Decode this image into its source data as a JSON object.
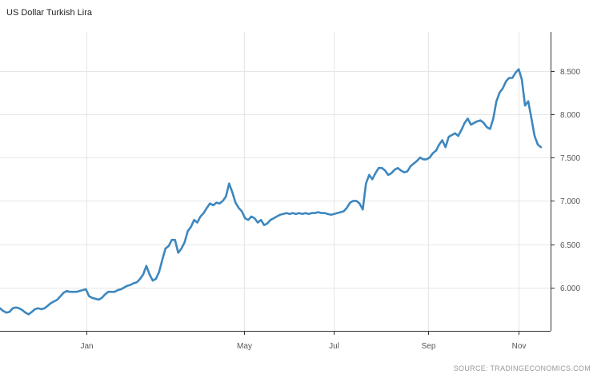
{
  "chart_data": {
    "type": "line",
    "title": "US Dollar Turkish Lira",
    "source": "SOURCE: TRADINGECONOMICS.COM",
    "xlabel": "",
    "ylabel": "",
    "ylim": [
      5.5,
      8.95
    ],
    "grid": true,
    "line_color": "#3d87bf",
    "x_tick_labels": [
      "Jan",
      "May",
      "Jul",
      "Sep",
      "Nov"
    ],
    "y_tick_labels": [
      "6.000",
      "6.500",
      "7.000",
      "7.500",
      "8.000",
      "8.500"
    ],
    "y_tick_values": [
      6.0,
      6.5,
      7.0,
      7.5,
      8.0,
      8.5
    ],
    "series": [
      {
        "values": [
          5.76,
          5.73,
          5.71,
          5.72,
          5.76,
          5.77,
          5.76,
          5.74,
          5.71,
          5.69,
          5.72,
          5.75,
          5.76,
          5.75,
          5.76,
          5.79,
          5.82,
          5.84,
          5.86,
          5.9,
          5.94,
          5.96,
          5.95,
          5.95,
          5.95,
          5.96,
          5.97,
          5.98,
          5.9,
          5.88,
          5.87,
          5.86,
          5.88,
          5.92,
          5.95,
          5.95,
          5.95,
          5.97,
          5.98,
          6.0,
          6.02,
          6.03,
          6.05,
          6.06,
          6.1,
          6.15,
          6.25,
          6.15,
          6.08,
          6.1,
          6.18,
          6.32,
          6.45,
          6.48,
          6.55,
          6.55,
          6.4,
          6.45,
          6.52,
          6.65,
          6.7,
          6.78,
          6.75,
          6.82,
          6.86,
          6.92,
          6.97,
          6.95,
          6.98,
          6.97,
          7.0,
          7.05,
          7.2,
          7.1,
          6.98,
          6.92,
          6.88,
          6.8,
          6.78,
          6.82,
          6.8,
          6.75,
          6.78,
          6.72,
          6.74,
          6.78,
          6.8,
          6.82,
          6.84,
          6.85,
          6.86,
          6.85,
          6.86,
          6.85,
          6.86,
          6.85,
          6.86,
          6.85,
          6.86,
          6.86,
          6.87,
          6.86,
          6.86,
          6.85,
          6.84,
          6.85,
          6.86,
          6.87,
          6.88,
          6.92,
          6.98,
          7.0,
          7.0,
          6.97,
          6.9,
          7.2,
          7.3,
          7.25,
          7.32,
          7.38,
          7.38,
          7.35,
          7.3,
          7.32,
          7.36,
          7.38,
          7.35,
          7.33,
          7.34,
          7.4,
          7.43,
          7.46,
          7.5,
          7.48,
          7.48,
          7.5,
          7.55,
          7.58,
          7.65,
          7.7,
          7.62,
          7.74,
          7.76,
          7.78,
          7.75,
          7.82,
          7.9,
          7.95,
          7.88,
          7.9,
          7.92,
          7.93,
          7.9,
          7.85,
          7.83,
          7.95,
          8.15,
          8.25,
          8.3,
          8.38,
          8.42,
          8.42,
          8.48,
          8.52,
          8.4,
          8.1,
          8.15,
          7.95,
          7.75,
          7.65,
          7.62
        ]
      }
    ]
  }
}
